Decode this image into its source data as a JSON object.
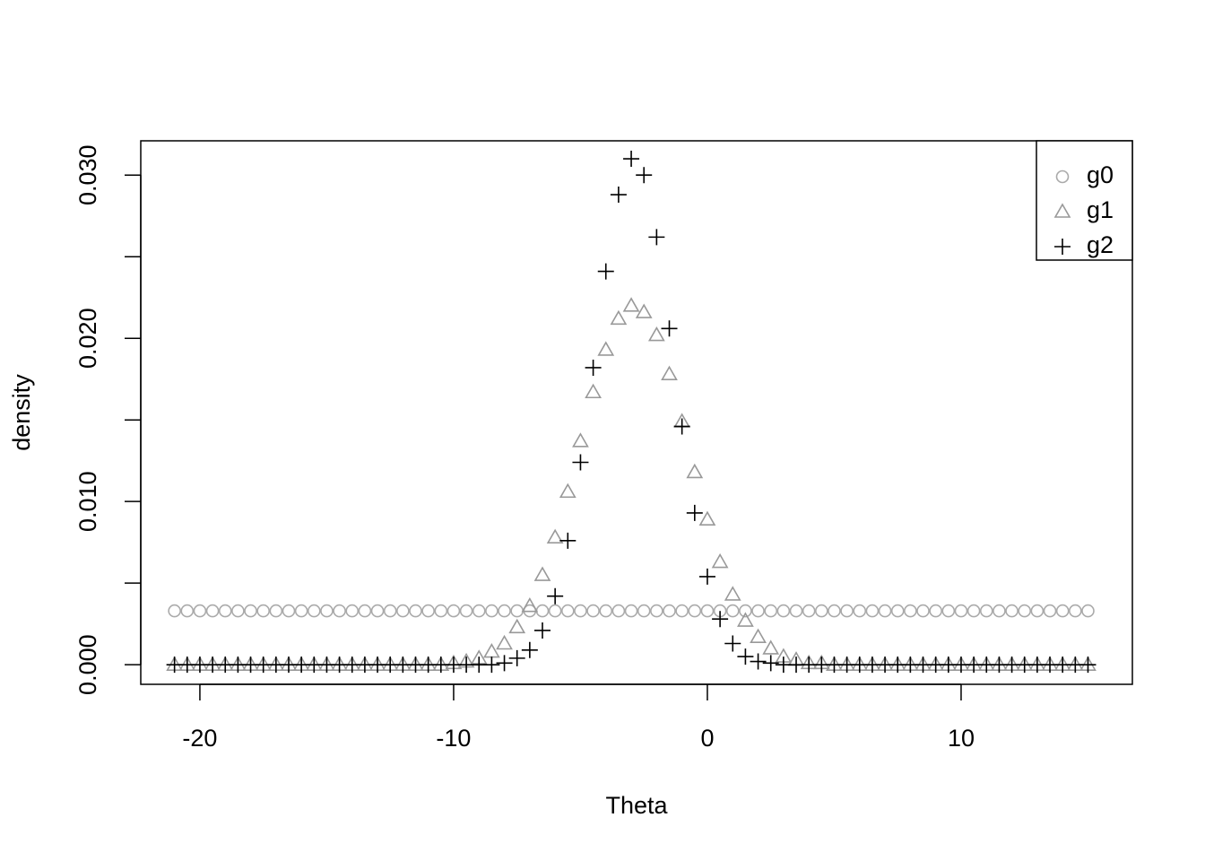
{
  "chart_data": {
    "type": "scatter",
    "xlabel": "Theta",
    "ylabel": "density",
    "x": [
      -21,
      -20.5,
      -20,
      -19.5,
      -19,
      -18.5,
      -18,
      -17.5,
      -17,
      -16.5,
      -16,
      -15.5,
      -15,
      -14.5,
      -14,
      -13.5,
      -13,
      -12.5,
      -12,
      -11.5,
      -11,
      -10.5,
      -10,
      -9.5,
      -9,
      -8.5,
      -8,
      -7.5,
      -7,
      -6.5,
      -6,
      -5.5,
      -5,
      -4.5,
      -4,
      -3.5,
      -3,
      -2.5,
      -2,
      -1.5,
      -1,
      -0.5,
      0,
      0.5,
      1,
      1.5,
      2,
      2.5,
      3,
      3.5,
      4,
      4.5,
      5,
      5.5,
      6,
      6.5,
      7,
      7.5,
      8,
      8.5,
      9,
      9.5,
      10,
      10.5,
      11,
      11.5,
      12,
      12.5,
      13,
      13.5,
      14,
      14.5,
      15
    ],
    "series": [
      {
        "name": "g0",
        "color": "#aaaaaa",
        "marker": "circle",
        "values": [
          0.0033,
          0.0033,
          0.0033,
          0.0033,
          0.0033,
          0.0033,
          0.0033,
          0.0033,
          0.0033,
          0.0033,
          0.0033,
          0.0033,
          0.0033,
          0.0033,
          0.0033,
          0.0033,
          0.0033,
          0.0033,
          0.0033,
          0.0033,
          0.0033,
          0.0033,
          0.0033,
          0.0033,
          0.0033,
          0.0033,
          0.0033,
          0.0033,
          0.0033,
          0.0033,
          0.0033,
          0.0033,
          0.0033,
          0.0033,
          0.0033,
          0.0033,
          0.0033,
          0.0033,
          0.0033,
          0.0033,
          0.0033,
          0.0033,
          0.0033,
          0.0033,
          0.0033,
          0.0033,
          0.0033,
          0.0033,
          0.0033,
          0.0033,
          0.0033,
          0.0033,
          0.0033,
          0.0033,
          0.0033,
          0.0033,
          0.0033,
          0.0033,
          0.0033,
          0.0033,
          0.0033,
          0.0033,
          0.0033,
          0.0033,
          0.0033,
          0.0033,
          0.0033,
          0.0033,
          0.0033,
          0.0033,
          0.0033,
          0.0033,
          0.0033
        ]
      },
      {
        "name": "g1",
        "color": "#999999",
        "marker": "triangle",
        "values": [
          0,
          0,
          0,
          0,
          0,
          0,
          0,
          0,
          0,
          0,
          0,
          0,
          0,
          0,
          0,
          0,
          0,
          0,
          0,
          0,
          0,
          0,
          0.0001,
          0.0002,
          0.0004,
          0.0008,
          0.0013,
          0.0023,
          0.0036,
          0.0055,
          0.0078,
          0.0106,
          0.0137,
          0.0167,
          0.0193,
          0.0212,
          0.022,
          0.0216,
          0.0202,
          0.0178,
          0.0149,
          0.0118,
          0.0089,
          0.0063,
          0.0043,
          0.0027,
          0.0017,
          0.001,
          0.0005,
          0.0003,
          0.0001,
          0.0001,
          0,
          0,
          0,
          0,
          0,
          0,
          0,
          0,
          0,
          0,
          0,
          0,
          0,
          0,
          0,
          0,
          0,
          0,
          0,
          0,
          0
        ]
      },
      {
        "name": "g2",
        "color": "#000000",
        "marker": "plus",
        "values": [
          0,
          0,
          0,
          0,
          0,
          0,
          0,
          0,
          0,
          0,
          0,
          0,
          0,
          0,
          0,
          0,
          0,
          0,
          0,
          0,
          0,
          0,
          0,
          0,
          0,
          0,
          0.0001,
          0.0004,
          0.0009,
          0.0021,
          0.0042,
          0.0076,
          0.0124,
          0.0182,
          0.0241,
          0.0288,
          0.031,
          0.03,
          0.0262,
          0.0206,
          0.0146,
          0.0093,
          0.0054,
          0.0028,
          0.0013,
          0.0005,
          0.0002,
          0.0001,
          0,
          0,
          0,
          0,
          0,
          0,
          0,
          0,
          0,
          0,
          0,
          0,
          0,
          0,
          0,
          0,
          0,
          0,
          0,
          0,
          0,
          0,
          0,
          0,
          0
        ]
      }
    ],
    "xlim": [
      -22.33,
      16.75
    ],
    "xticks": [
      -20,
      -10,
      0,
      10
    ],
    "ylim": [
      -0.0012,
      0.0321
    ],
    "yticks": [
      {
        "value": 0,
        "label": "0.000"
      },
      0.005,
      {
        "value": 0.01,
        "label": "0.010"
      },
      0.015,
      {
        "value": 0.02,
        "label": "0.020"
      },
      0.025,
      {
        "value": 0.03,
        "label": "0.030"
      }
    ],
    "legend": "topright",
    "grid": false
  }
}
